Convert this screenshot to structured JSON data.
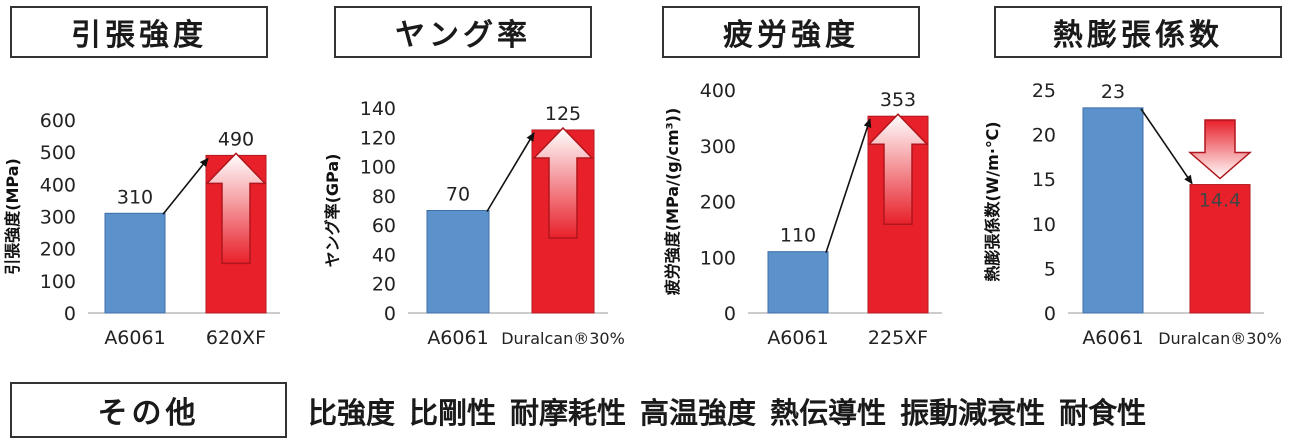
{
  "headers": [
    "引張強度",
    "ヤング率",
    "疲労強度",
    "熱膨張係数"
  ],
  "others_label": "その他",
  "others_items": [
    "比強度",
    "比剛性",
    "耐摩耗性",
    "高温強度",
    "熱伝導性",
    "振動減衰性",
    "耐食性"
  ],
  "colors": {
    "blue": "#5b92cc",
    "red": "#e8202a"
  },
  "chart_data": [
    {
      "type": "bar",
      "ylabel": "引張強度(MPa)",
      "categories": [
        "A6061",
        "620XF"
      ],
      "values": [
        310,
        490
      ],
      "value_labels": [
        "310",
        "490"
      ],
      "ylim": [
        0,
        600
      ],
      "yticks": [
        "0",
        "100",
        "200",
        "300",
        "400",
        "500",
        "600"
      ],
      "trend": "up"
    },
    {
      "type": "bar",
      "ylabel": "ヤング率(GPa)",
      "categories": [
        "A6061",
        "Duralcan®30%"
      ],
      "values": [
        70,
        125
      ],
      "value_labels": [
        "70",
        "125"
      ],
      "ylim": [
        0,
        140
      ],
      "yticks": [
        "0",
        "20",
        "40",
        "60",
        "80",
        "100",
        "120",
        "140"
      ],
      "trend": "up"
    },
    {
      "type": "bar",
      "ylabel": "疲労強度(MPa/(g/cm³))",
      "categories": [
        "A6061",
        "225XF"
      ],
      "values": [
        110,
        353
      ],
      "value_labels": [
        "110",
        "353"
      ],
      "ylim": [
        0,
        400
      ],
      "yticks": [
        "0",
        "100",
        "200",
        "300",
        "400"
      ],
      "trend": "up"
    },
    {
      "type": "bar",
      "ylabel": "熱膨張係数(W/m·℃)",
      "categories": [
        "A6061",
        "Duralcan®30%"
      ],
      "values": [
        23,
        14.4
      ],
      "value_labels": [
        "23",
        "14.4"
      ],
      "ylim": [
        0,
        25
      ],
      "yticks": [
        "0",
        "5",
        "10",
        "15",
        "20",
        "25"
      ],
      "trend": "down"
    }
  ]
}
